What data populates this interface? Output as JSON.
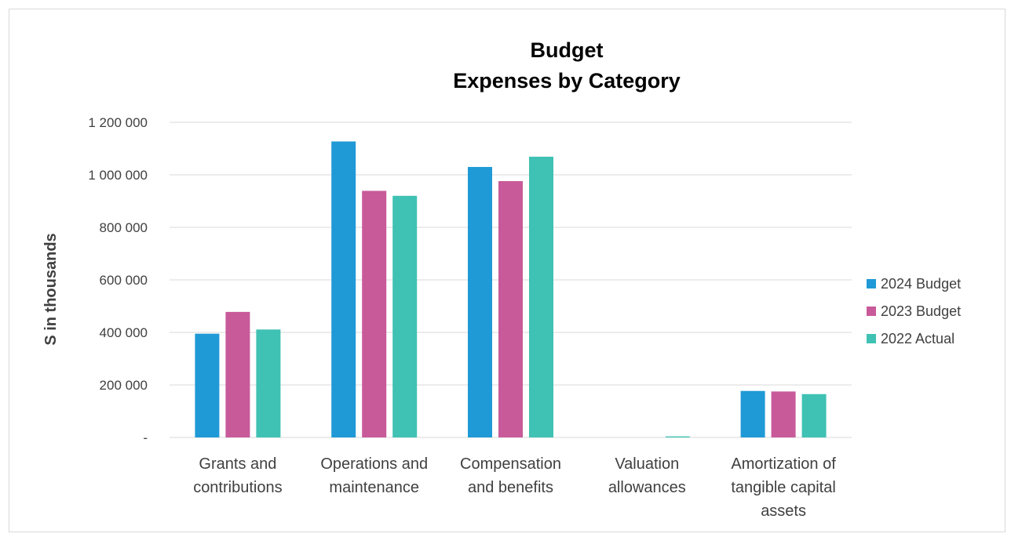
{
  "chart_data": {
    "type": "bar",
    "title": [
      "Budget",
      "Expenses by Category"
    ],
    "ylabel": "S in thousands",
    "xlabel": "",
    "ylim": [
      0,
      1200000
    ],
    "yticks": [
      {
        "value": 0,
        "label": "-"
      },
      {
        "value": 200000,
        "label": "200 000"
      },
      {
        "value": 400000,
        "label": "400 000"
      },
      {
        "value": 600000,
        "label": "600 000"
      },
      {
        "value": 800000,
        "label": "800 000"
      },
      {
        "value": 1000000,
        "label": "1 000 000"
      },
      {
        "value": 1200000,
        "label": "1 200 000"
      }
    ],
    "grid": true,
    "legend_position": "right",
    "categories": [
      [
        "Grants and",
        "contributions"
      ],
      [
        "Operations and",
        "maintenance"
      ],
      [
        "Compensation",
        "and benefits"
      ],
      [
        "Valuation",
        "allowances"
      ],
      [
        "Amortization of",
        "tangible capital",
        "assets"
      ]
    ],
    "series": [
      {
        "name": "2024 Budget",
        "color": "#1f9ad6",
        "values": [
          395000,
          1127000,
          1030000,
          0,
          177000
        ]
      },
      {
        "name": "2023 Budget",
        "color": "#c85a9a",
        "values": [
          478000,
          939000,
          976000,
          0,
          175000
        ]
      },
      {
        "name": "2022 Actual",
        "color": "#3fc1b3",
        "values": [
          411000,
          920000,
          1069000,
          4000,
          165000
        ]
      }
    ]
  }
}
